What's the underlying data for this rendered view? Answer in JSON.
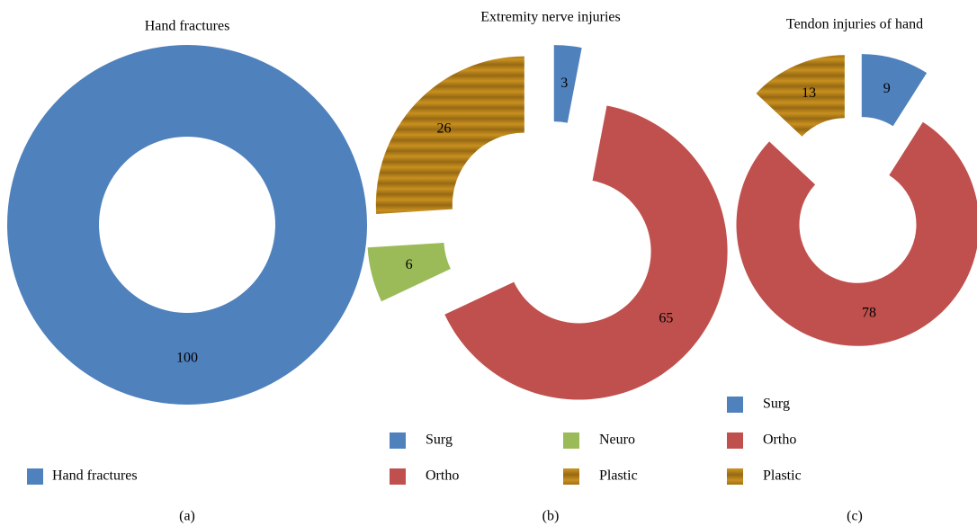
{
  "chart_data": [
    {
      "type": "donut",
      "title": "Hand fractures",
      "caption": "(a)",
      "categories": [
        "Hand fractures"
      ],
      "values": [
        100
      ],
      "colors": [
        "#4f81bd"
      ],
      "fill_style": [
        "solid"
      ],
      "legend": "bottom"
    },
    {
      "type": "donut",
      "title": "Extremity nerve injuries",
      "caption": "(b)",
      "categories": [
        "Surg",
        "Ortho",
        "Neuro",
        "Plastic"
      ],
      "values": [
        3,
        65,
        6,
        26
      ],
      "colors": [
        "#4f81bd",
        "#c0504d",
        "#9bbb59",
        "#c8901e"
      ],
      "fill_style": [
        "solid",
        "solid",
        "solid",
        "striped"
      ],
      "exploded": true,
      "legend": "bottom"
    },
    {
      "type": "donut",
      "title": "Tendon injuries of hand",
      "caption": "(c)",
      "categories": [
        "Surg",
        "Ortho",
        "Plastic"
      ],
      "values": [
        9,
        78,
        13
      ],
      "colors": [
        "#4f81bd",
        "#c0504d",
        "#c8901e"
      ],
      "fill_style": [
        "solid",
        "solid",
        "striped"
      ],
      "exploded": true,
      "legend": "bottom"
    }
  ]
}
